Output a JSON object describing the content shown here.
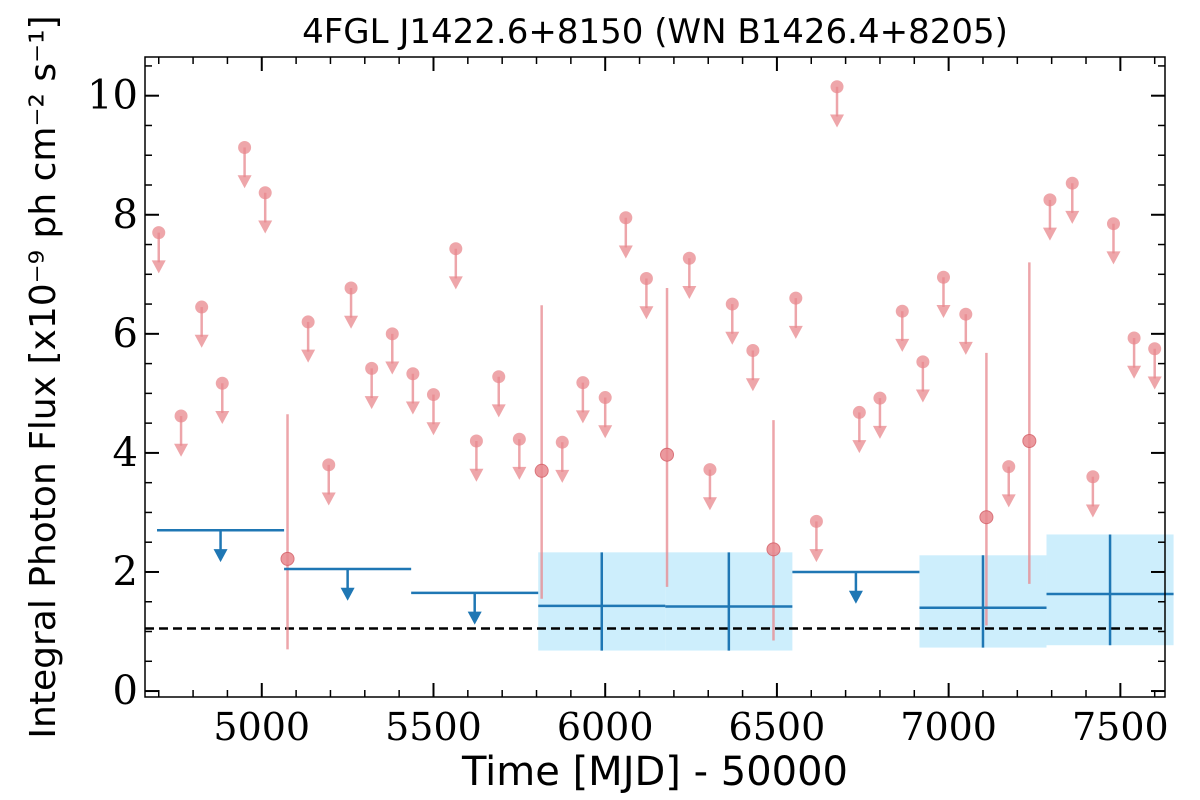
{
  "chart_data": {
    "type": "scatter",
    "title": "4FGL J1422.6+8150 (WN B1426.4+8205)",
    "xlabel": "Time [MJD] - 50000",
    "ylabel": "Integral Photon Flux [x10⁻⁹ ph cm⁻² s⁻¹]",
    "xlim": [
      4660,
      7630
    ],
    "ylim": [
      -0.1,
      10.65
    ],
    "x_ticks": [
      5000,
      5500,
      6000,
      6500,
      7000,
      7500
    ],
    "x_tick_labels": [
      "5000",
      "5500",
      "6000",
      "6500",
      "7000",
      "7500"
    ],
    "y_ticks": [
      0,
      2,
      4,
      6,
      8,
      10
    ],
    "y_tick_labels": [
      "0",
      "2",
      "4",
      "6",
      "8",
      "10"
    ],
    "grid": false,
    "reference_line": {
      "y": 1.05,
      "style": "dashed",
      "color": "#000000"
    },
    "colors": {
      "short_bins": "#e8888e",
      "long_bins": "#1f77b4",
      "long_bins_band": "#cdeefc"
    },
    "short_bin_upper_limits": [
      {
        "x": 4700,
        "y": 7.7
      },
      {
        "x": 4765,
        "y": 4.62
      },
      {
        "x": 4825,
        "y": 6.45
      },
      {
        "x": 4885,
        "y": 5.17
      },
      {
        "x": 4950,
        "y": 9.13
      },
      {
        "x": 5010,
        "y": 8.37
      },
      {
        "x": 5135,
        "y": 6.2
      },
      {
        "x": 5195,
        "y": 3.8
      },
      {
        "x": 5260,
        "y": 6.77
      },
      {
        "x": 5320,
        "y": 5.42
      },
      {
        "x": 5380,
        "y": 6.0
      },
      {
        "x": 5440,
        "y": 5.33
      },
      {
        "x": 5500,
        "y": 4.98
      },
      {
        "x": 5565,
        "y": 7.43
      },
      {
        "x": 5625,
        "y": 4.2
      },
      {
        "x": 5690,
        "y": 5.28
      },
      {
        "x": 5750,
        "y": 4.23
      },
      {
        "x": 5875,
        "y": 4.18
      },
      {
        "x": 5935,
        "y": 5.18
      },
      {
        "x": 6000,
        "y": 4.93
      },
      {
        "x": 6060,
        "y": 7.95
      },
      {
        "x": 6120,
        "y": 6.93
      },
      {
        "x": 6245,
        "y": 7.27
      },
      {
        "x": 6305,
        "y": 3.72
      },
      {
        "x": 6370,
        "y": 6.5
      },
      {
        "x": 6430,
        "y": 5.72
      },
      {
        "x": 6555,
        "y": 6.6
      },
      {
        "x": 6615,
        "y": 2.85
      },
      {
        "x": 6675,
        "y": 10.15
      },
      {
        "x": 6740,
        "y": 4.68
      },
      {
        "x": 6800,
        "y": 4.92
      },
      {
        "x": 6865,
        "y": 6.38
      },
      {
        "x": 6925,
        "y": 5.53
      },
      {
        "x": 6985,
        "y": 6.95
      },
      {
        "x": 7050,
        "y": 6.33
      },
      {
        "x": 7175,
        "y": 3.77
      },
      {
        "x": 7295,
        "y": 8.25
      },
      {
        "x": 7360,
        "y": 8.53
      },
      {
        "x": 7420,
        "y": 3.6
      },
      {
        "x": 7480,
        "y": 7.85
      },
      {
        "x": 7540,
        "y": 5.93
      },
      {
        "x": 7600,
        "y": 5.75
      }
    ],
    "short_bin_detections": [
      {
        "x": 5075,
        "y": 2.22,
        "ylow": 0.7,
        "yhigh": 4.65
      },
      {
        "x": 5815,
        "y": 3.7,
        "ylow": 1.55,
        "yhigh": 6.48
      },
      {
        "x": 6180,
        "y": 3.97,
        "ylow": 1.75,
        "yhigh": 6.77
      },
      {
        "x": 6490,
        "y": 2.38,
        "ylow": 0.85,
        "yhigh": 4.55
      },
      {
        "x": 7110,
        "y": 2.92,
        "ylow": 1.1,
        "yhigh": 5.68
      },
      {
        "x": 7235,
        "y": 4.2,
        "ylow": 1.8,
        "yhigh": 7.2
      }
    ],
    "long_bin_upper_limits": [
      {
        "xstart": 4695,
        "xend": 5065,
        "y": 2.7
      },
      {
        "xstart": 5065,
        "xend": 5435,
        "y": 2.05
      },
      {
        "xstart": 5435,
        "xend": 5805,
        "y": 1.65
      },
      {
        "xstart": 6545,
        "xend": 6915,
        "y": 2.0
      }
    ],
    "long_bin_detections": [
      {
        "xstart": 5805,
        "xend": 6175,
        "y": 1.43,
        "ylow": 0.68,
        "yhigh": 2.33
      },
      {
        "xstart": 6175,
        "xend": 6545,
        "y": 1.42,
        "ylow": 0.68,
        "yhigh": 2.33
      },
      {
        "xstart": 6915,
        "xend": 7285,
        "y": 1.4,
        "ylow": 0.73,
        "yhigh": 2.28
      },
      {
        "xstart": 7285,
        "xend": 7655,
        "y": 1.63,
        "ylow": 0.77,
        "yhigh": 2.63
      }
    ]
  }
}
